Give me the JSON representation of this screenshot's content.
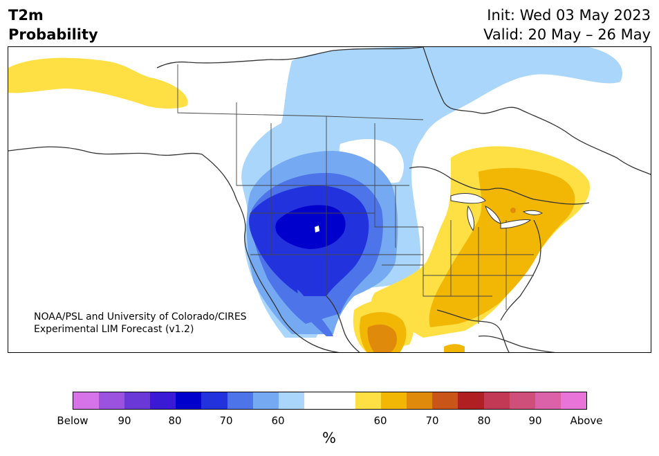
{
  "header": {
    "title_line1": "T2m",
    "title_line2": "Probability",
    "init": "Init: Wed 03 May 2023",
    "valid": "Valid: 20 May – 26 May"
  },
  "credit": {
    "line1": "NOAA/PSL and University of Colorado/CIRES",
    "line2": "Experimental LIM Forecast (v1.2)"
  },
  "colorbar": {
    "colors": [
      "#d673e8",
      "#9b52de",
      "#6a38d7",
      "#3a1ad4",
      "#0000cc",
      "#2233dd",
      "#4d74e8",
      "#75aaf2",
      "#a9d6fa",
      "#ffffff",
      "#ffffff",
      "#ffe044",
      "#f2b705",
      "#e08a0b",
      "#c95518",
      "#b01f22",
      "#c23956",
      "#cf4f7b",
      "#db62a9",
      "#e873d9"
    ],
    "ticks": [
      "Below",
      "90",
      "80",
      "70",
      "60",
      "60",
      "70",
      "80",
      "90",
      "Above"
    ],
    "unit": "%"
  },
  "map_colors": {
    "blue1": "#a9d6fa",
    "blue2": "#75aaf2",
    "blue3": "#4d74e8",
    "blue4": "#2233dd",
    "blue5": "#0000cc",
    "yellow": "#ffe044",
    "orange1": "#f2b705",
    "orange2": "#e08a0b",
    "orange3": "#c95518"
  }
}
